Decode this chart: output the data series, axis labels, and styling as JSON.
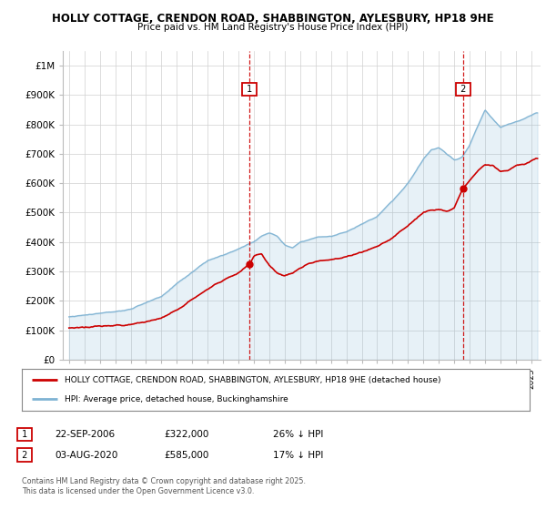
{
  "title1": "HOLLY COTTAGE, CRENDON ROAD, SHABBINGTON, AYLESBURY, HP18 9HE",
  "title2": "Price paid vs. HM Land Registry's House Price Index (HPI)",
  "legend_label1": "HOLLY COTTAGE, CRENDON ROAD, SHABBINGTON, AYLESBURY, HP18 9HE (detached house)",
  "legend_label2": "HPI: Average price, detached house, Buckinghamshire",
  "color_price": "#cc0000",
  "color_hpi": "#7fb3d3",
  "annotation1": {
    "label": "1",
    "date": "22-SEP-2006",
    "price": "£322,000",
    "pct": "26% ↓ HPI",
    "x_year": 2006.72
  },
  "annotation2": {
    "label": "2",
    "date": "03-AUG-2020",
    "price": "£585,000",
    "pct": "17% ↓ HPI",
    "x_year": 2020.58
  },
  "ylabel_ticks": [
    "£0",
    "£100K",
    "£200K",
    "£300K",
    "£400K",
    "£500K",
    "£600K",
    "£700K",
    "£800K",
    "£900K",
    "£1M"
  ],
  "ytick_values": [
    0,
    100000,
    200000,
    300000,
    400000,
    500000,
    600000,
    700000,
    800000,
    900000,
    1000000
  ],
  "xlim": [
    1994.6,
    2025.6
  ],
  "ylim": [
    0,
    1050000
  ],
  "plot_bg": "#ffffff",
  "footer": "Contains HM Land Registry data © Crown copyright and database right 2025.\nThis data is licensed under the Open Government Licence v3.0."
}
